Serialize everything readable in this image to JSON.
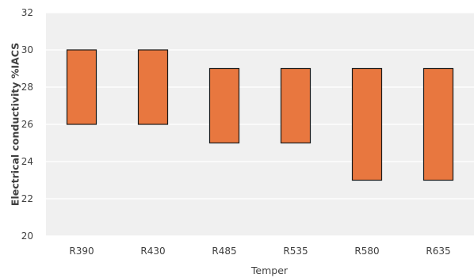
{
  "chart_data": {
    "type": "bar",
    "subtype": "floating-range",
    "categories": [
      "R390",
      "R430",
      "R485",
      "R535",
      "R580",
      "R635"
    ],
    "ranges": [
      {
        "low": 26,
        "high": 30
      },
      {
        "low": 26,
        "high": 30
      },
      {
        "low": 25,
        "high": 29
      },
      {
        "low": 25,
        "high": 29
      },
      {
        "low": 23,
        "high": 29
      },
      {
        "low": 23,
        "high": 29
      }
    ],
    "xlabel": "Temper",
    "ylabel": "Electrical conductivity %IACS",
    "ylim": [
      20,
      32
    ],
    "yticks": [
      20,
      22,
      24,
      26,
      28,
      30,
      32
    ],
    "grid": true,
    "legend": "none",
    "colors": {
      "bar_fill": "#E8773F",
      "bar_stroke": "#1a1a1a",
      "plot_bg": "#F0F0F0",
      "gridline": "#FFFFFF",
      "text": "#404040"
    }
  }
}
